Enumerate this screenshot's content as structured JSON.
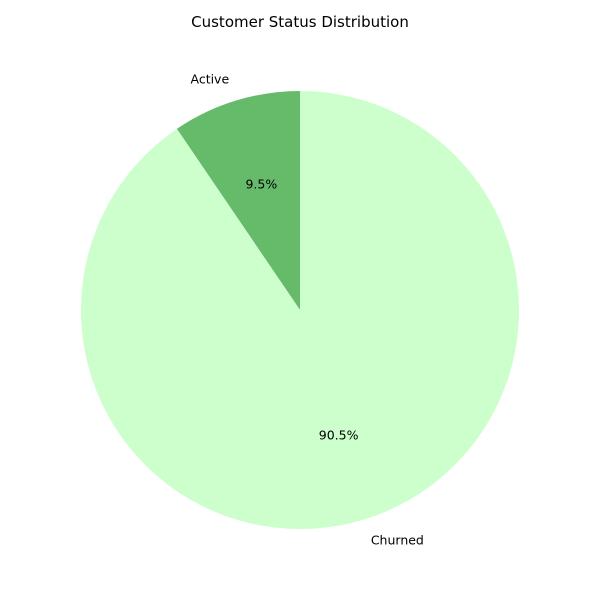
{
  "chart_data": {
    "type": "pie",
    "title": "Customer Status Distribution",
    "slices": [
      {
        "label": "Active",
        "value": 9.5,
        "pct_label": "9.5%",
        "color": "#66bb6a"
      },
      {
        "label": "Churned",
        "value": 90.5,
        "pct_label": "90.5%",
        "color": "#ccffcc"
      }
    ],
    "start_angle_deg": 90,
    "direction": "counterclockwise"
  }
}
